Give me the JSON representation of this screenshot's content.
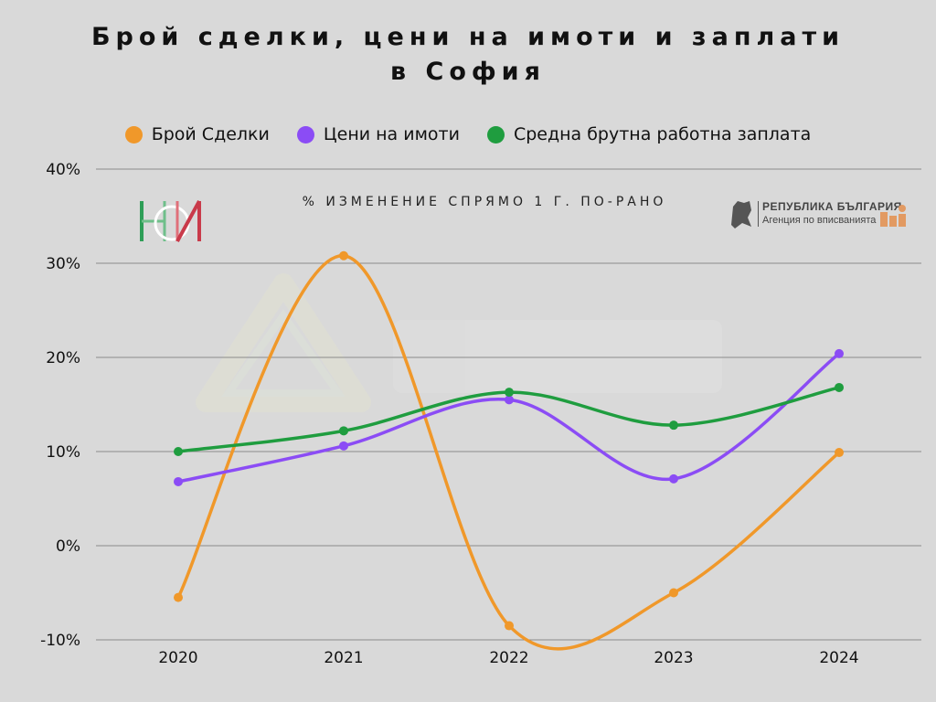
{
  "title_line1": "Брой сделки, цени на имоти и заплати",
  "title_line2": "в София",
  "subtitle": "% ИЗМЕНЕНИЕ СПРЯМО 1 Г. ПО-РАНО",
  "logos": {
    "right_line1": "РЕПУБЛИКА БЪЛГАРИЯ",
    "right_line2": "Агенция по вписванията"
  },
  "chart_data": {
    "type": "line",
    "categories": [
      "2020",
      "2021",
      "2022",
      "2023",
      "2024"
    ],
    "ylim": [
      -10,
      40
    ],
    "yticks": [
      -10,
      0,
      10,
      20,
      30,
      40
    ],
    "ytick_labels": [
      "-10%",
      "0%",
      "10%",
      "20%",
      "30%",
      "40%"
    ],
    "grid": true,
    "legend_position": "top",
    "series": [
      {
        "name": "Брой Сделки",
        "color": "#f0982a",
        "values": [
          -5.5,
          30.8,
          -8.5,
          -5.0,
          9.9
        ]
      },
      {
        "name": "Цени на имоти",
        "color": "#8b4cf5",
        "values": [
          6.8,
          10.6,
          15.5,
          7.1,
          20.4
        ]
      },
      {
        "name": "Средна брутна работна заплата",
        "color": "#1f9d3f",
        "values": [
          10.0,
          12.2,
          16.3,
          12.8,
          16.8
        ]
      }
    ]
  }
}
